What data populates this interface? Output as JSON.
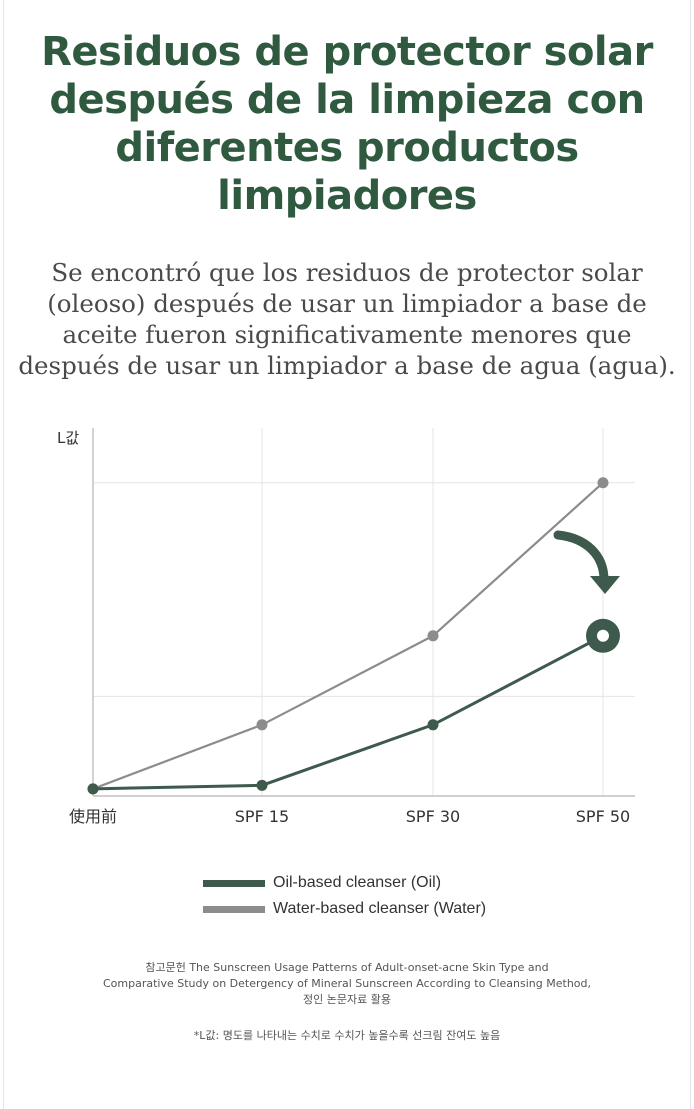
{
  "header": {
    "title_lines": [
      "Residuos de protector solar",
      "después de la limpieza con",
      "diferentes productos",
      "limpiadores"
    ],
    "subtitle_lines": [
      "Se encontró que los residuos de protector solar",
      "(oleoso) después de usar un limpiador a base de",
      "aceite fueron significativamente menores que",
      "después de usar un limpiador a base de agua (agua)."
    ]
  },
  "colors": {
    "title": "#2f5a3f",
    "oil": "#3e5a4c",
    "water": "#8c8c8c",
    "grid": "#e4e4e4",
    "axis": "#b5b5b5"
  },
  "chart_data": {
    "type": "line",
    "ylabel": "L값",
    "xlabel": "",
    "categories": [
      "使用前",
      "SPF 15",
      "SPF 30",
      "SPF 50"
    ],
    "ylim": [
      0,
      100
    ],
    "grid": true,
    "legend_position": "bottom",
    "series": [
      {
        "name": "Oil-based cleanser (Oil)",
        "key": "oil",
        "values": [
          2,
          3,
          20,
          45
        ]
      },
      {
        "name": "Water-based cleanser (Water)",
        "key": "water",
        "values": [
          2,
          20,
          45,
          88
        ]
      }
    ],
    "highlight": {
      "series": "oil",
      "category": "SPF 50",
      "marker": "ring",
      "arrow": "curved-down-arrow-icon"
    }
  },
  "legend": {
    "items": [
      {
        "label": "Oil-based cleanser (Oil)",
        "color": "#3e5a4c"
      },
      {
        "label": "Water-based cleanser (Water)",
        "color": "#8c8c8c"
      }
    ]
  },
  "footer": {
    "reference_lines": [
      "참고문헌 The Sunscreen Usage Patterns of Adult-onset-acne Skin Type and",
      "Comparative Study on Detergency of Mineral Sunscreen According to Cleansing Method,",
      "정인 논문자료 활용"
    ],
    "note": "*L값: 명도를 나타내는 수치로 수치가 높을수록 선크림 잔여도 높음"
  }
}
